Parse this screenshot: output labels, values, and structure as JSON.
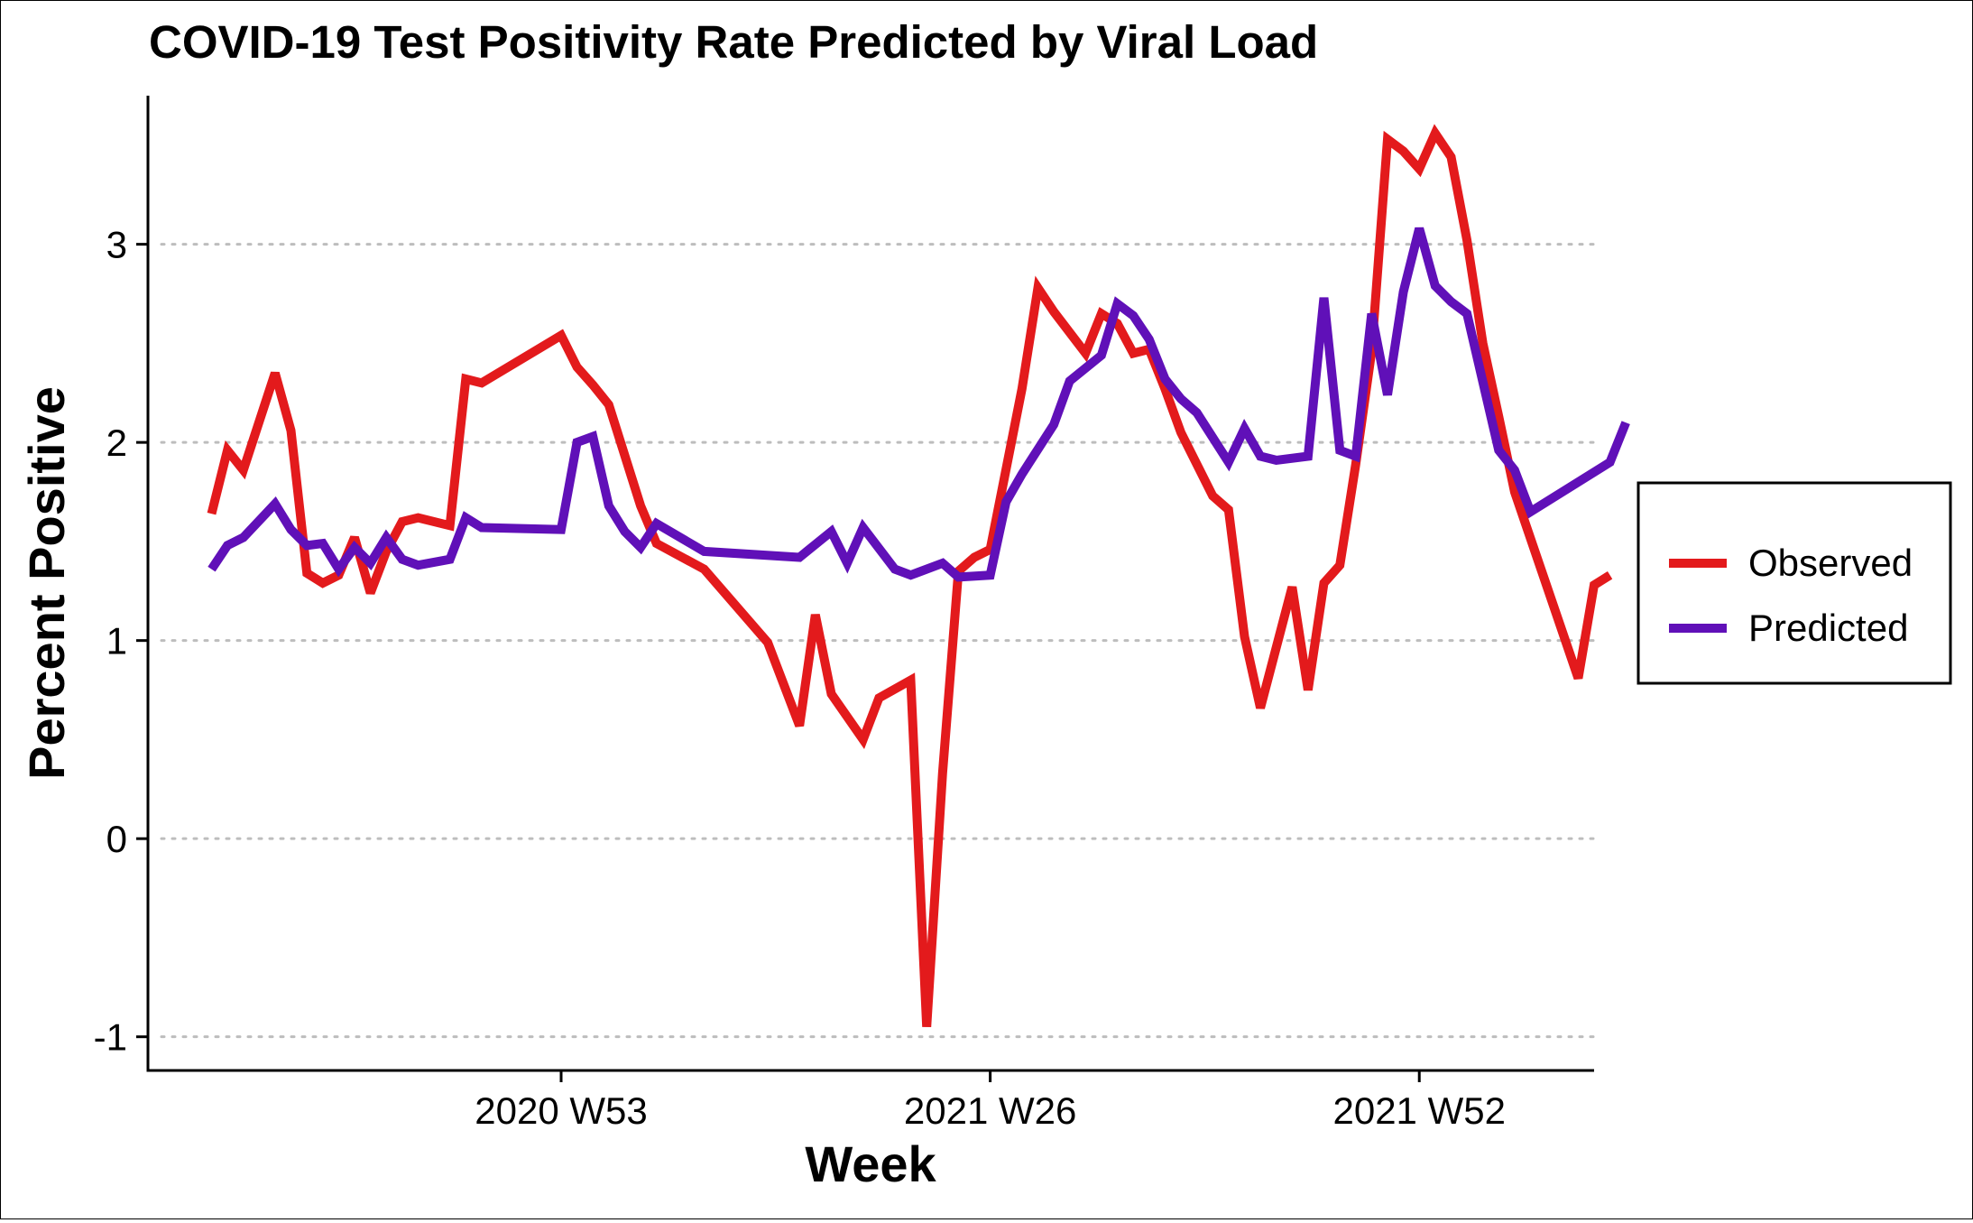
{
  "chart_data": {
    "type": "line",
    "title": "COVID-19 Test Positivity Rate Predicted by Viral Load",
    "xlabel": "Week",
    "ylabel": "Percent Positive",
    "xlim": [
      1,
      92
    ],
    "ylim": [
      -1.17,
      3.75
    ],
    "x_ticks": [
      {
        "x": 27,
        "label": "2020 W53"
      },
      {
        "x": 54,
        "label": "2021 W26"
      },
      {
        "x": 81,
        "label": "2021 W52"
      }
    ],
    "y_ticks": [
      -1,
      0,
      1,
      2,
      3
    ],
    "y_tick_labels": [
      "-1",
      "0",
      "1",
      "2",
      "3"
    ],
    "grid": {
      "x": false,
      "y": true,
      "style": "dotted"
    },
    "legend": {
      "position": "right",
      "border": true
    },
    "series": [
      {
        "name": "Observed",
        "color": "#e31a1c",
        "points": [
          [
            5,
            1.64
          ],
          [
            6,
            1.96
          ],
          [
            7,
            1.86
          ],
          [
            9,
            2.35
          ],
          [
            10,
            2.06
          ],
          [
            11,
            1.34
          ],
          [
            12,
            1.29
          ],
          [
            13,
            1.33
          ],
          [
            14,
            1.52
          ],
          [
            15,
            1.24
          ],
          [
            16,
            1.45
          ],
          [
            17,
            1.6
          ],
          [
            18,
            1.62
          ],
          [
            20,
            1.58
          ],
          [
            21,
            2.32
          ],
          [
            22,
            2.3
          ],
          [
            27,
            2.54
          ],
          [
            28,
            2.38
          ],
          [
            29,
            2.29
          ],
          [
            30,
            2.19
          ],
          [
            32,
            1.68
          ],
          [
            33,
            1.49
          ],
          [
            36,
            1.36
          ],
          [
            40,
            0.99
          ],
          [
            42,
            0.57
          ],
          [
            43,
            1.13
          ],
          [
            44,
            0.73
          ],
          [
            46,
            0.5
          ],
          [
            47,
            0.71
          ],
          [
            49,
            0.8
          ],
          [
            50,
            -0.95
          ],
          [
            51,
            0.33
          ],
          [
            52,
            1.35
          ],
          [
            53,
            1.42
          ],
          [
            54,
            1.46
          ],
          [
            56,
            2.27
          ],
          [
            57,
            2.78
          ],
          [
            58,
            2.66
          ],
          [
            60,
            2.45
          ],
          [
            61,
            2.65
          ],
          [
            62,
            2.6
          ],
          [
            63,
            2.45
          ],
          [
            64,
            2.47
          ],
          [
            65,
            2.27
          ],
          [
            66,
            2.05
          ],
          [
            68,
            1.73
          ],
          [
            69,
            1.66
          ],
          [
            70,
            1.02
          ],
          [
            71,
            0.66
          ],
          [
            73,
            1.27
          ],
          [
            74,
            0.75
          ],
          [
            75,
            1.29
          ],
          [
            76,
            1.38
          ],
          [
            77,
            1.89
          ],
          [
            78,
            2.46
          ],
          [
            79,
            3.53
          ],
          [
            80,
            3.47
          ],
          [
            81,
            3.38
          ],
          [
            82,
            3.56
          ],
          [
            83,
            3.44
          ],
          [
            84,
            3.02
          ],
          [
            85,
            2.5
          ],
          [
            86,
            2.13
          ],
          [
            87,
            1.75
          ],
          [
            91,
            0.81
          ],
          [
            92,
            1.28
          ],
          [
            93,
            1.33
          ]
        ]
      },
      {
        "name": "Predicted",
        "color": "#6010b8",
        "points": [
          [
            5,
            1.36
          ],
          [
            6,
            1.48
          ],
          [
            7,
            1.52
          ],
          [
            9,
            1.69
          ],
          [
            10,
            1.56
          ],
          [
            11,
            1.48
          ],
          [
            12,
            1.49
          ],
          [
            13,
            1.36
          ],
          [
            14,
            1.47
          ],
          [
            15,
            1.39
          ],
          [
            16,
            1.52
          ],
          [
            17,
            1.41
          ],
          [
            18,
            1.38
          ],
          [
            20,
            1.41
          ],
          [
            21,
            1.62
          ],
          [
            22,
            1.57
          ],
          [
            27,
            1.56
          ],
          [
            28,
            2.0
          ],
          [
            29,
            2.03
          ],
          [
            30,
            1.68
          ],
          [
            31,
            1.55
          ],
          [
            32,
            1.47
          ],
          [
            33,
            1.59
          ],
          [
            36,
            1.45
          ],
          [
            42,
            1.42
          ],
          [
            44,
            1.55
          ],
          [
            45,
            1.39
          ],
          [
            46,
            1.57
          ],
          [
            48,
            1.36
          ],
          [
            49,
            1.33
          ],
          [
            51,
            1.39
          ],
          [
            52,
            1.32
          ],
          [
            54,
            1.33
          ],
          [
            55,
            1.7
          ],
          [
            56,
            1.84
          ],
          [
            58,
            2.09
          ],
          [
            59,
            2.31
          ],
          [
            61,
            2.44
          ],
          [
            62,
            2.7
          ],
          [
            63,
            2.64
          ],
          [
            64,
            2.52
          ],
          [
            65,
            2.32
          ],
          [
            66,
            2.22
          ],
          [
            67,
            2.15
          ],
          [
            69,
            1.9
          ],
          [
            70,
            2.07
          ],
          [
            71,
            1.93
          ],
          [
            72,
            1.91
          ],
          [
            74,
            1.93
          ],
          [
            75,
            2.73
          ],
          [
            76,
            1.96
          ],
          [
            77,
            1.93
          ],
          [
            78,
            2.65
          ],
          [
            79,
            2.24
          ],
          [
            80,
            2.76
          ],
          [
            81,
            3.08
          ],
          [
            82,
            2.79
          ],
          [
            83,
            2.71
          ],
          [
            84,
            2.65
          ],
          [
            86,
            1.96
          ],
          [
            87,
            1.86
          ],
          [
            88,
            1.65
          ],
          [
            93,
            1.9
          ],
          [
            94,
            2.1
          ]
        ]
      }
    ]
  }
}
